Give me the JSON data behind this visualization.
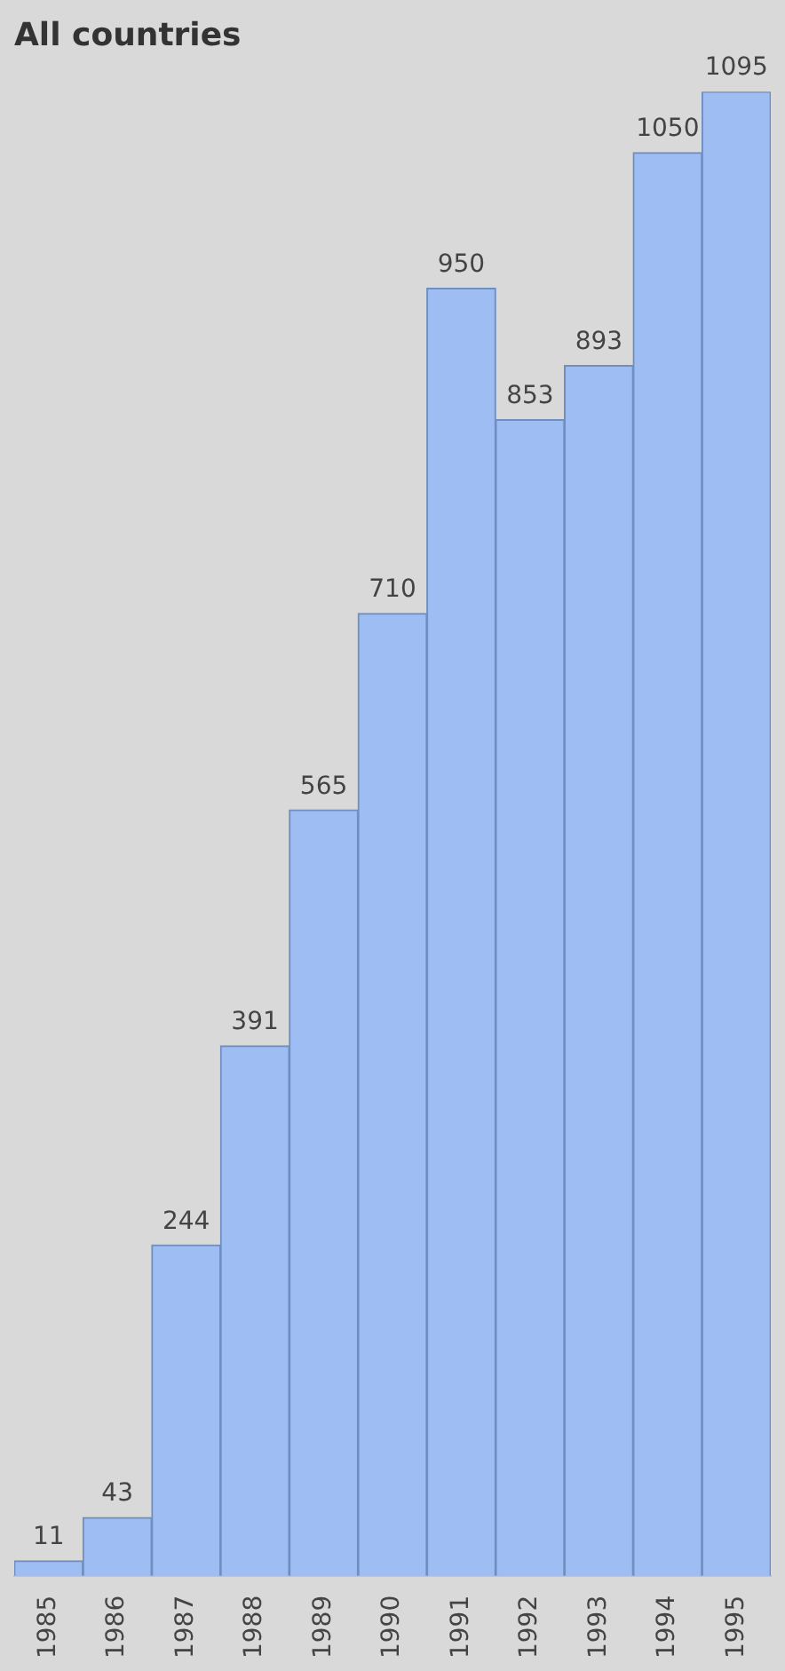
{
  "chart_data": {
    "type": "bar",
    "title": "All countries",
    "categories": [
      "1985",
      "1986",
      "1987",
      "1988",
      "1989",
      "1990",
      "1991",
      "1992",
      "1993",
      "1994",
      "1995"
    ],
    "values": [
      11,
      43,
      244,
      391,
      565,
      710,
      950,
      853,
      893,
      1050,
      1095
    ],
    "color": "#9dbdf3",
    "data_labels": true,
    "grid": false,
    "legend": false
  }
}
